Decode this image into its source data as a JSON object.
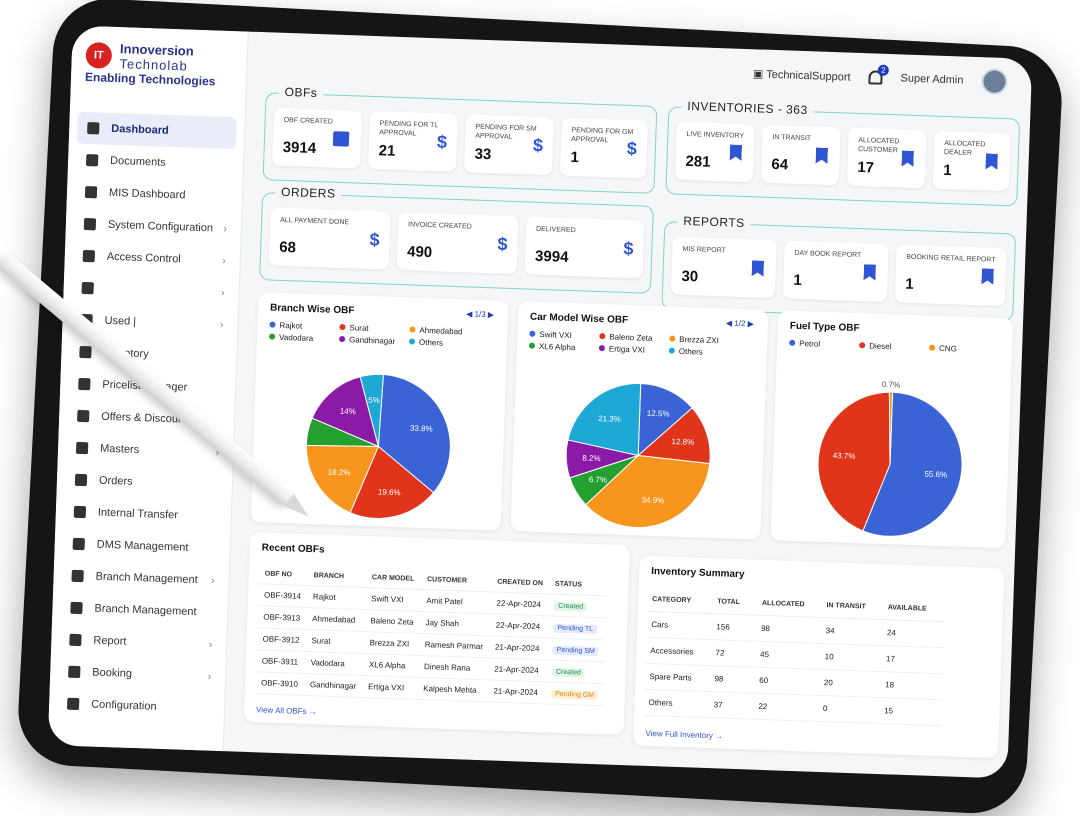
{
  "brand": {
    "line1": "Innoversion",
    "line2": "Technolab",
    "line3": "Enabling Technologies",
    "logo_text": "IT"
  },
  "topbar": {
    "support": "TechnicalSupport",
    "notif_count": "2",
    "user": "Super Admin"
  },
  "sidebar": {
    "items": [
      {
        "label": "Dashboard",
        "active": true
      },
      {
        "label": "Documents"
      },
      {
        "label": "MIS Dashboard"
      },
      {
        "label": "System Configuration",
        "chev": "›"
      },
      {
        "label": "Access Control",
        "chev": "›"
      },
      {
        "label": "",
        "chev": "›"
      },
      {
        "label": "Used |",
        "chev": "›"
      },
      {
        "label": "Inventory"
      },
      {
        "label": "Pricelist Manager"
      },
      {
        "label": "Offers & Discounts"
      },
      {
        "label": "Masters",
        "chev": "›"
      },
      {
        "label": "Orders"
      },
      {
        "label": "Internal Transfer"
      },
      {
        "label": "DMS Management"
      },
      {
        "label": "Branch Management",
        "chev": "›"
      },
      {
        "label": "Branch Management"
      },
      {
        "label": "Report",
        "chev": "›"
      },
      {
        "label": "Booking",
        "chev": "›"
      },
      {
        "label": "Configuration"
      }
    ]
  },
  "obfs": {
    "title": "OBFs",
    "cards": [
      {
        "label": "OBF CREATED",
        "value": "3914",
        "icon": "calendar"
      },
      {
        "label": "PENDING FOR TL APPROVAL",
        "value": "21",
        "icon": "$"
      },
      {
        "label": "PENDING FOR SM APPROVAL",
        "value": "33",
        "icon": "$"
      },
      {
        "label": "PENDING FOR GM APPROVAL",
        "value": "1",
        "icon": "$"
      }
    ]
  },
  "inventories": {
    "title": "INVENTORIES - 363",
    "cards": [
      {
        "label": "LIVE INVENTORY",
        "value": "281"
      },
      {
        "label": "IN TRANSIT",
        "value": "64"
      },
      {
        "label": "ALLOCATED CUSTOMER",
        "value": "17"
      },
      {
        "label": "ALLOCATED DEALER",
        "value": "1"
      }
    ]
  },
  "orders": {
    "title": "ORDERS",
    "cards": [
      {
        "label": "ALL PAYMENT DONE",
        "value": "68",
        "icon": "$"
      },
      {
        "label": "INVOICE CREATED",
        "value": "490",
        "icon": "$"
      },
      {
        "label": "DELIVERED",
        "value": "3994",
        "icon": "$"
      }
    ]
  },
  "reports": {
    "title": "REPORTS",
    "cards": [
      {
        "label": "MIS REPORT",
        "value": "30"
      },
      {
        "label": "DAY BOOK REPORT",
        "value": "1"
      },
      {
        "label": "BOOKING RETAIL REPORT",
        "value": "1"
      }
    ]
  },
  "chart_data": [
    {
      "type": "pie",
      "title": "Branch Wise OBF",
      "pager": "1/3",
      "labels": [
        "Rajkot",
        "Surat",
        "Ahmedabad",
        "Vadodara",
        "Gandhinagar",
        "Others"
      ],
      "values": [
        33.8,
        19.6,
        18.2,
        6.0,
        14.0,
        5.0
      ],
      "value_labels": [
        "33.8%",
        "19.6%",
        "18.2%",
        "",
        "14%",
        "5%"
      ],
      "colors": [
        "#3a63d6",
        "#e0341b",
        "#f7951d",
        "#23a030",
        "#8b1aa6",
        "#1ea8d6"
      ]
    },
    {
      "type": "pie",
      "title": "Car Model Wise OBF",
      "pager": "1/2",
      "labels": [
        "Swift VXI",
        "Baleno Zeta",
        "Brezza ZXI",
        "XL6 Alpha",
        "Ertiga VXI",
        "Others"
      ],
      "values": [
        12.5,
        12.8,
        34.9,
        6.7,
        8.2,
        21.3
      ],
      "value_labels": [
        "12.5%",
        "12.8%",
        "34.9%",
        "6.7%",
        "8.2%",
        "21.3%"
      ],
      "colors": [
        "#3a63d6",
        "#e0341b",
        "#f7951d",
        "#23a030",
        "#8b1aa6",
        "#1ea8d6"
      ]
    },
    {
      "type": "pie",
      "title": "Fuel Type OBF",
      "labels": [
        "Petrol",
        "Diesel",
        "CNG"
      ],
      "values": [
        55.6,
        43.7,
        0.7
      ],
      "value_labels": [
        "55.6%",
        "43.7%",
        "0.7%"
      ],
      "colors": [
        "#3a63d6",
        "#e0341b",
        "#f7951d"
      ]
    }
  ],
  "recent": {
    "title": "Recent OBFs",
    "headers": [
      "OBF NO",
      "BRANCH",
      "CAR MODEL",
      "CUSTOMER",
      "CREATED ON",
      "STATUS"
    ],
    "rows": [
      [
        "OBF-3914",
        "Rajkot",
        "Swift VXI",
        "Amit Patel",
        "22-Apr-2024",
        "Created"
      ],
      [
        "OBF-3913",
        "Ahmedabad",
        "Baleno Zeta",
        "Jay Shah",
        "22-Apr-2024",
        "Pending TL"
      ],
      [
        "OBF-3912",
        "Surat",
        "Brezza ZXI",
        "Ramesh Parmar",
        "21-Apr-2024",
        "Pending SM"
      ],
      [
        "OBF-3911",
        "Vadodara",
        "XL6 Alpha",
        "Dinesh Rana",
        "21-Apr-2024",
        "Created"
      ],
      [
        "OBF-3910",
        "Gandhinagar",
        "Ertiga VXI",
        "Kalpesh Mehta",
        "21-Apr-2024",
        "Pending GM"
      ]
    ],
    "link": "View All OBFs →"
  },
  "summary": {
    "title": "Inventory Summary",
    "headers": [
      "CATEGORY",
      "TOTAL",
      "ALLOCATED",
      "IN TRANSIT",
      "AVAILABLE"
    ],
    "rows": [
      [
        "Cars",
        "156",
        "98",
        "34",
        "24"
      ],
      [
        "Accessories",
        "72",
        "45",
        "10",
        "17"
      ],
      [
        "Spare Parts",
        "98",
        "60",
        "20",
        "18"
      ],
      [
        "Others",
        "37",
        "22",
        "0",
        "15"
      ]
    ],
    "link": "View Full Inventory →"
  }
}
